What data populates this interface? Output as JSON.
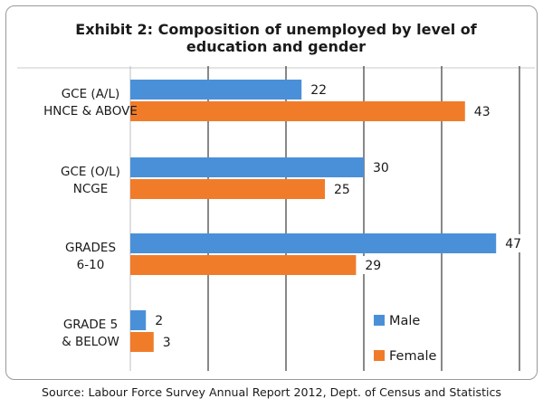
{
  "chart_data": {
    "type": "bar",
    "orientation": "horizontal",
    "title_lines": [
      "Exhibit 2: Composition of unemployed by level of",
      "education and gender"
    ],
    "categories": [
      [
        "GCE (A/L)",
        "HNCE & ABOVE"
      ],
      [
        "GCE (O/L)",
        "NCGE"
      ],
      [
        "GRADES",
        "6-10"
      ],
      [
        "GRADE 5",
        "& BELOW"
      ]
    ],
    "series": [
      {
        "name": "Male",
        "color": "#4a90d9",
        "values": [
          22,
          30,
          47,
          2
        ]
      },
      {
        "name": "Female",
        "color": "#f07c2a",
        "values": [
          43,
          25,
          29,
          3
        ]
      }
    ],
    "xlim": [
      0,
      50
    ],
    "grid": true,
    "legend_position": "bottom-right",
    "source": "Source: Labour Force Survey Annual Report 2012, Dept. of Census and Statistics"
  }
}
